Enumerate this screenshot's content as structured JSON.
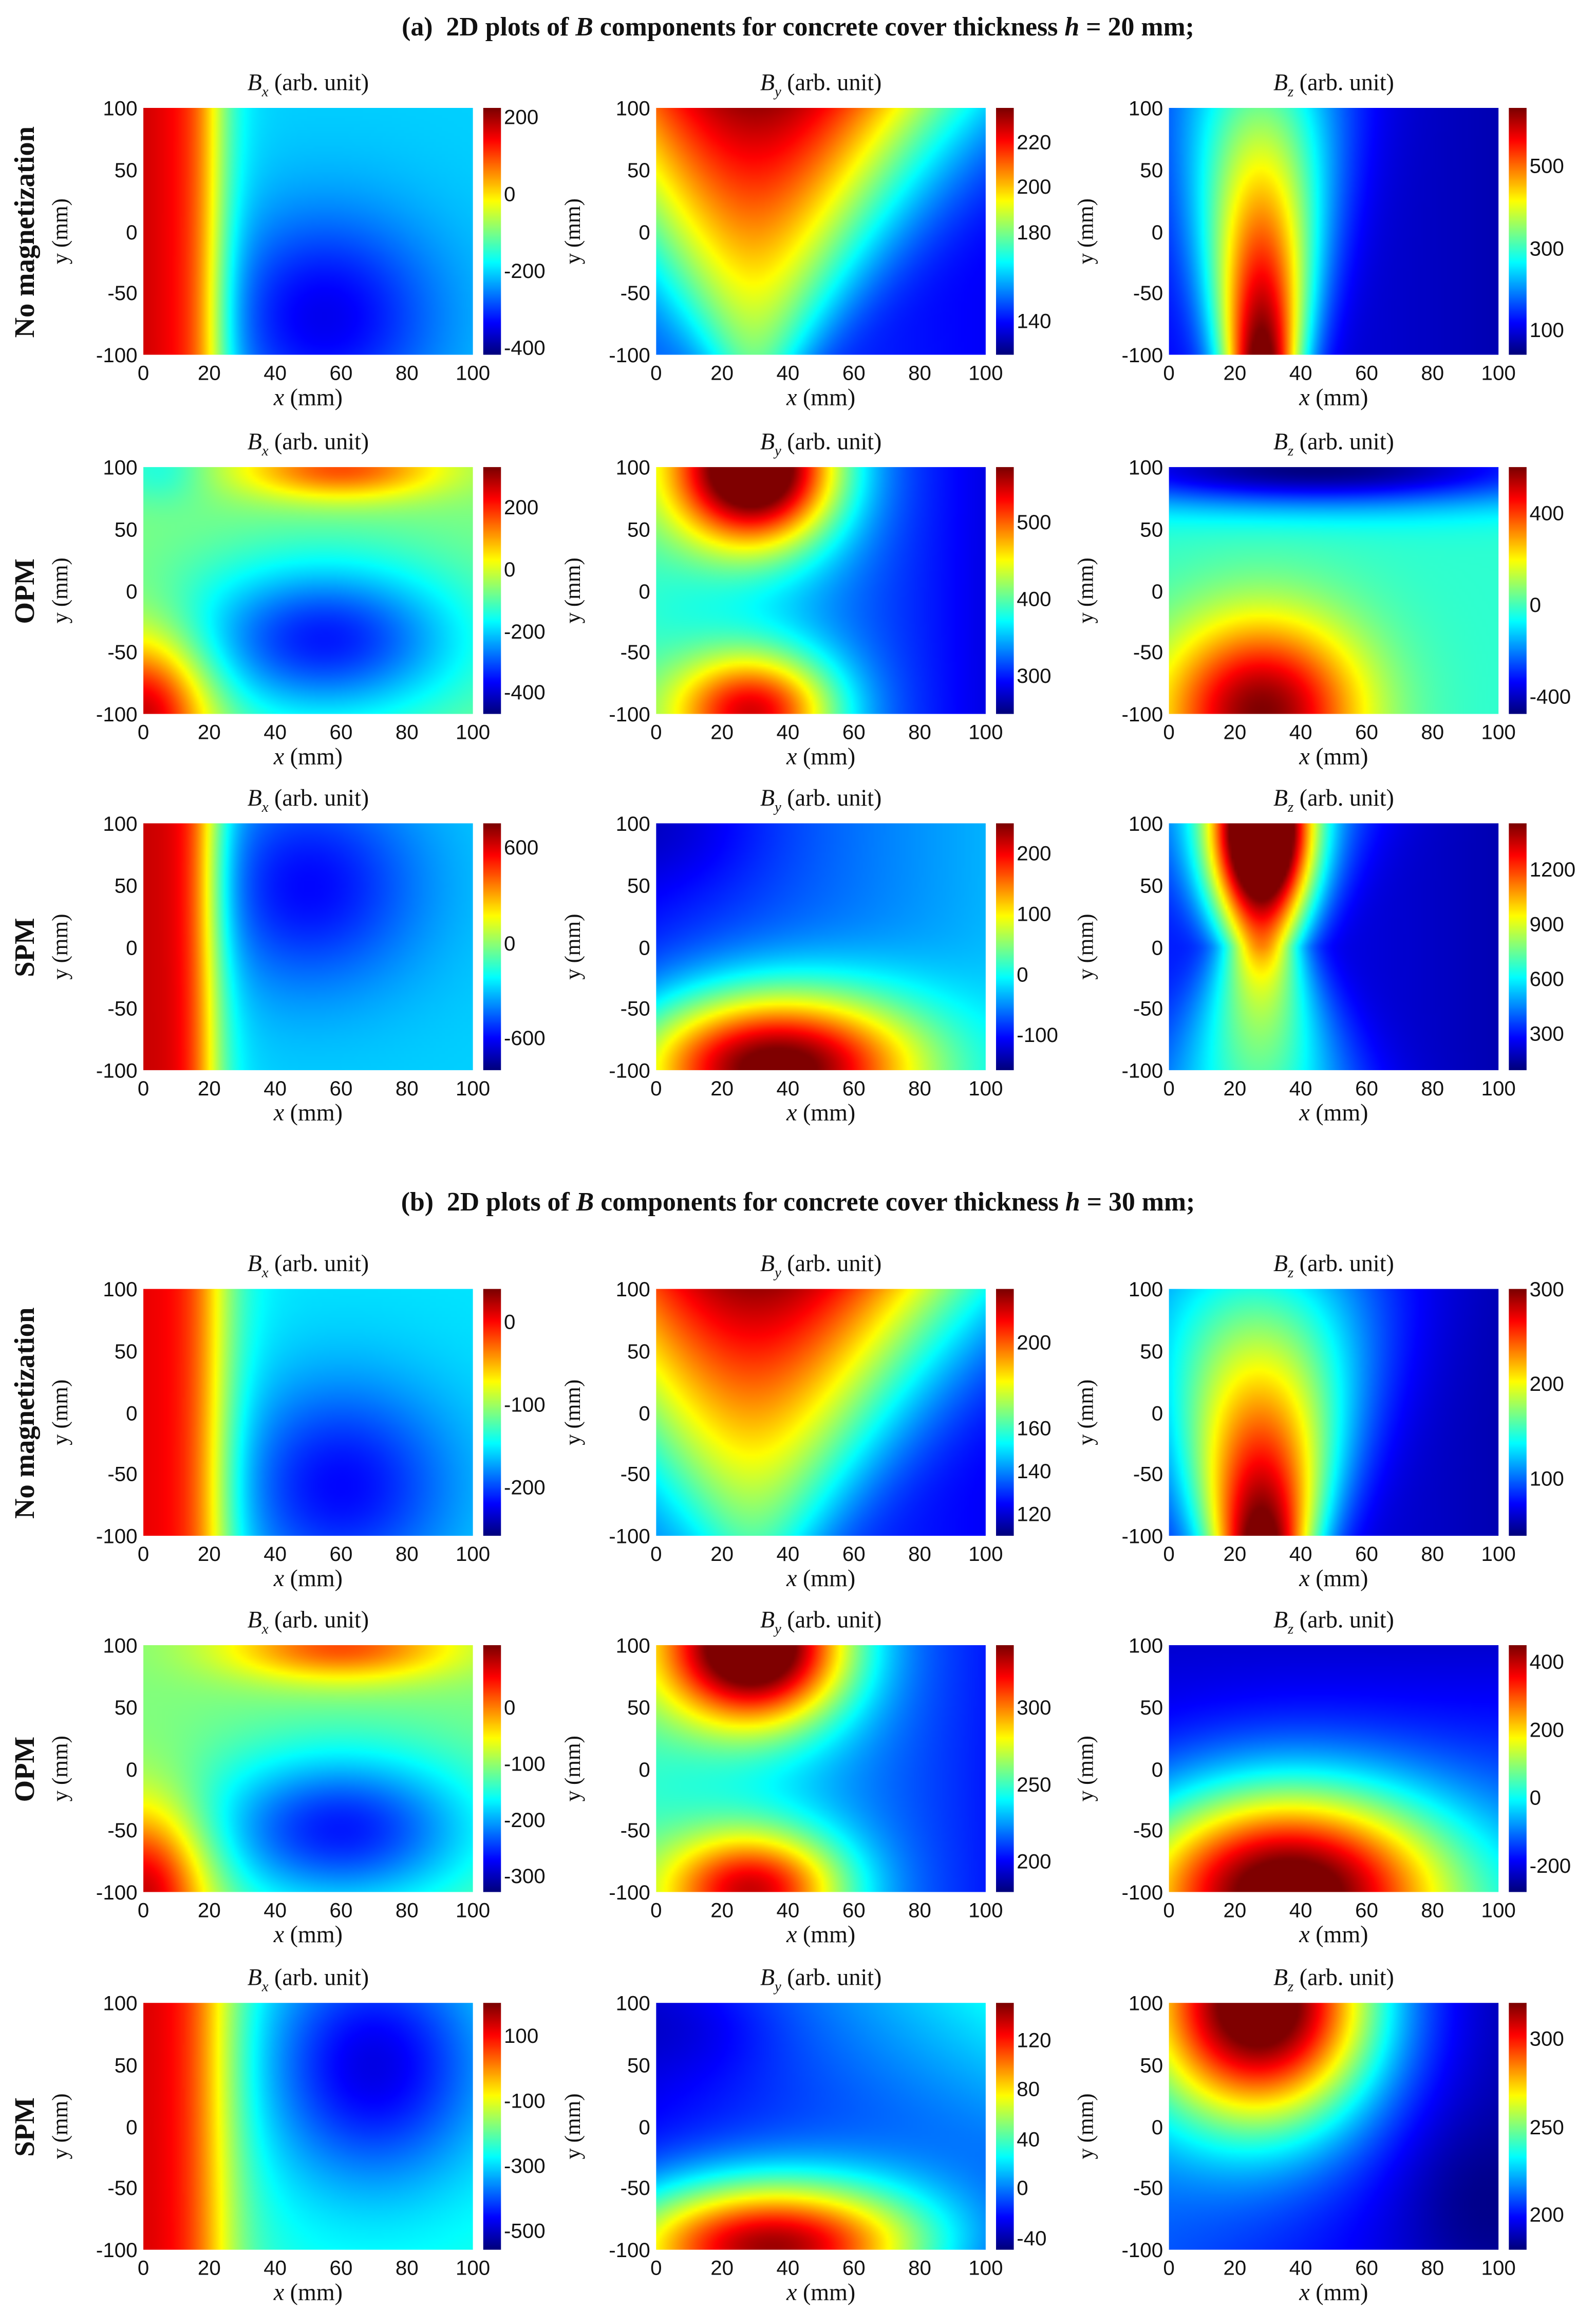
{
  "sections": [
    {
      "label": "(a)",
      "pre": "2D plots of ",
      "B": "B",
      "mid": " components for concrete cover thickness ",
      "h": "h",
      "post": " = 20 mm;"
    },
    {
      "label": "(b)",
      "pre": "2D plots of ",
      "B": "B",
      "mid": " components for concrete cover thickness ",
      "h": "h",
      "post": " = 30 mm;"
    }
  ],
  "row_labels": [
    "No magnetization",
    "OPM",
    "SPM"
  ],
  "axes": {
    "xticks": [
      0,
      20,
      40,
      60,
      80,
      100
    ],
    "yticks": [
      100,
      50,
      0,
      -50,
      -100
    ],
    "xlim": [
      0,
      100
    ],
    "ylim": [
      -100,
      100
    ],
    "xlabel_var": "x",
    "xlabel_unit": " (mm)",
    "ylabel": "y (mm)",
    "title_unit": " (arb. unit)",
    "colormap": "jet"
  },
  "chart_data": [
    {
      "type": "heatmap",
      "section": "(a)",
      "row": "No magnetization",
      "title": "B",
      "sub": "x",
      "colorbar_ticks": [
        200,
        0,
        -200,
        -400
      ],
      "colorbar_range": [
        -420,
        225
      ]
    },
    {
      "type": "heatmap",
      "section": "(a)",
      "row": "No magnetization",
      "title": "B",
      "sub": "y",
      "colorbar_ticks": [
        220,
        200,
        180,
        140
      ],
      "colorbar_range": [
        125,
        235
      ]
    },
    {
      "type": "heatmap",
      "section": "(a)",
      "row": "No magnetization",
      "title": "B",
      "sub": "z",
      "colorbar_ticks": [
        500,
        300,
        100
      ],
      "colorbar_range": [
        40,
        640
      ]
    },
    {
      "type": "heatmap",
      "section": "(a)",
      "row": "OPM",
      "title": "B",
      "sub": "x",
      "colorbar_ticks": [
        200,
        0,
        -200,
        -400
      ],
      "colorbar_range": [
        -470,
        330
      ]
    },
    {
      "type": "heatmap",
      "section": "(a)",
      "row": "OPM",
      "title": "B",
      "sub": "y",
      "colorbar_ticks": [
        500,
        400,
        300
      ],
      "colorbar_range": [
        250,
        570
      ]
    },
    {
      "type": "heatmap",
      "section": "(a)",
      "row": "OPM",
      "title": "B",
      "sub": "z",
      "colorbar_ticks": [
        400,
        0,
        -400
      ],
      "colorbar_range": [
        -480,
        600
      ]
    },
    {
      "type": "heatmap",
      "section": "(a)",
      "row": "SPM",
      "title": "B",
      "sub": "x",
      "colorbar_ticks": [
        600,
        0,
        -600
      ],
      "colorbar_range": [
        -800,
        750
      ]
    },
    {
      "type": "heatmap",
      "section": "(a)",
      "row": "SPM",
      "title": "B",
      "sub": "y",
      "colorbar_ticks": [
        200,
        100,
        0,
        -100
      ],
      "colorbar_range": [
        -160,
        250
      ]
    },
    {
      "type": "heatmap",
      "section": "(a)",
      "row": "SPM",
      "title": "B",
      "sub": "z",
      "colorbar_ticks": [
        1200,
        900,
        600,
        300
      ],
      "colorbar_range": [
        100,
        1450
      ]
    },
    {
      "type": "heatmap",
      "section": "(b)",
      "row": "No magnetization",
      "title": "B",
      "sub": "x",
      "colorbar_ticks": [
        0,
        -100,
        -200
      ],
      "colorbar_range": [
        -260,
        40
      ]
    },
    {
      "type": "heatmap",
      "section": "(b)",
      "row": "No magnetization",
      "title": "B",
      "sub": "y",
      "colorbar_ticks": [
        200,
        160,
        140,
        120
      ],
      "colorbar_range": [
        110,
        225
      ]
    },
    {
      "type": "heatmap",
      "section": "(b)",
      "row": "No magnetization",
      "title": "B",
      "sub": "z",
      "colorbar_ticks": [
        300,
        200,
        100
      ],
      "colorbar_range": [
        40,
        300
      ]
    },
    {
      "type": "heatmap",
      "section": "(b)",
      "row": "OPM",
      "title": "B",
      "sub": "x",
      "colorbar_ticks": [
        0,
        -100,
        -200,
        -300
      ],
      "colorbar_range": [
        -330,
        110
      ]
    },
    {
      "type": "heatmap",
      "section": "(b)",
      "row": "OPM",
      "title": "B",
      "sub": "y",
      "colorbar_ticks": [
        300,
        250,
        200
      ],
      "colorbar_range": [
        180,
        340
      ]
    },
    {
      "type": "heatmap",
      "section": "(b)",
      "row": "OPM",
      "title": "B",
      "sub": "z",
      "colorbar_ticks": [
        400,
        200,
        0,
        -200
      ],
      "colorbar_range": [
        -280,
        450
      ]
    },
    {
      "type": "heatmap",
      "section": "(b)",
      "row": "SPM",
      "title": "B",
      "sub": "x",
      "colorbar_ticks": [
        100,
        -100,
        -300,
        -500
      ],
      "colorbar_range": [
        -560,
        200
      ]
    },
    {
      "type": "heatmap",
      "section": "(b)",
      "row": "SPM",
      "title": "B",
      "sub": "y",
      "colorbar_ticks": [
        120,
        80,
        40,
        0,
        -40
      ],
      "colorbar_range": [
        -50,
        150
      ]
    },
    {
      "type": "heatmap",
      "section": "(b)",
      "row": "SPM",
      "title": "B",
      "sub": "z",
      "colorbar_ticks": [
        300,
        250,
        200
      ],
      "colorbar_range": [
        180,
        320
      ]
    }
  ]
}
